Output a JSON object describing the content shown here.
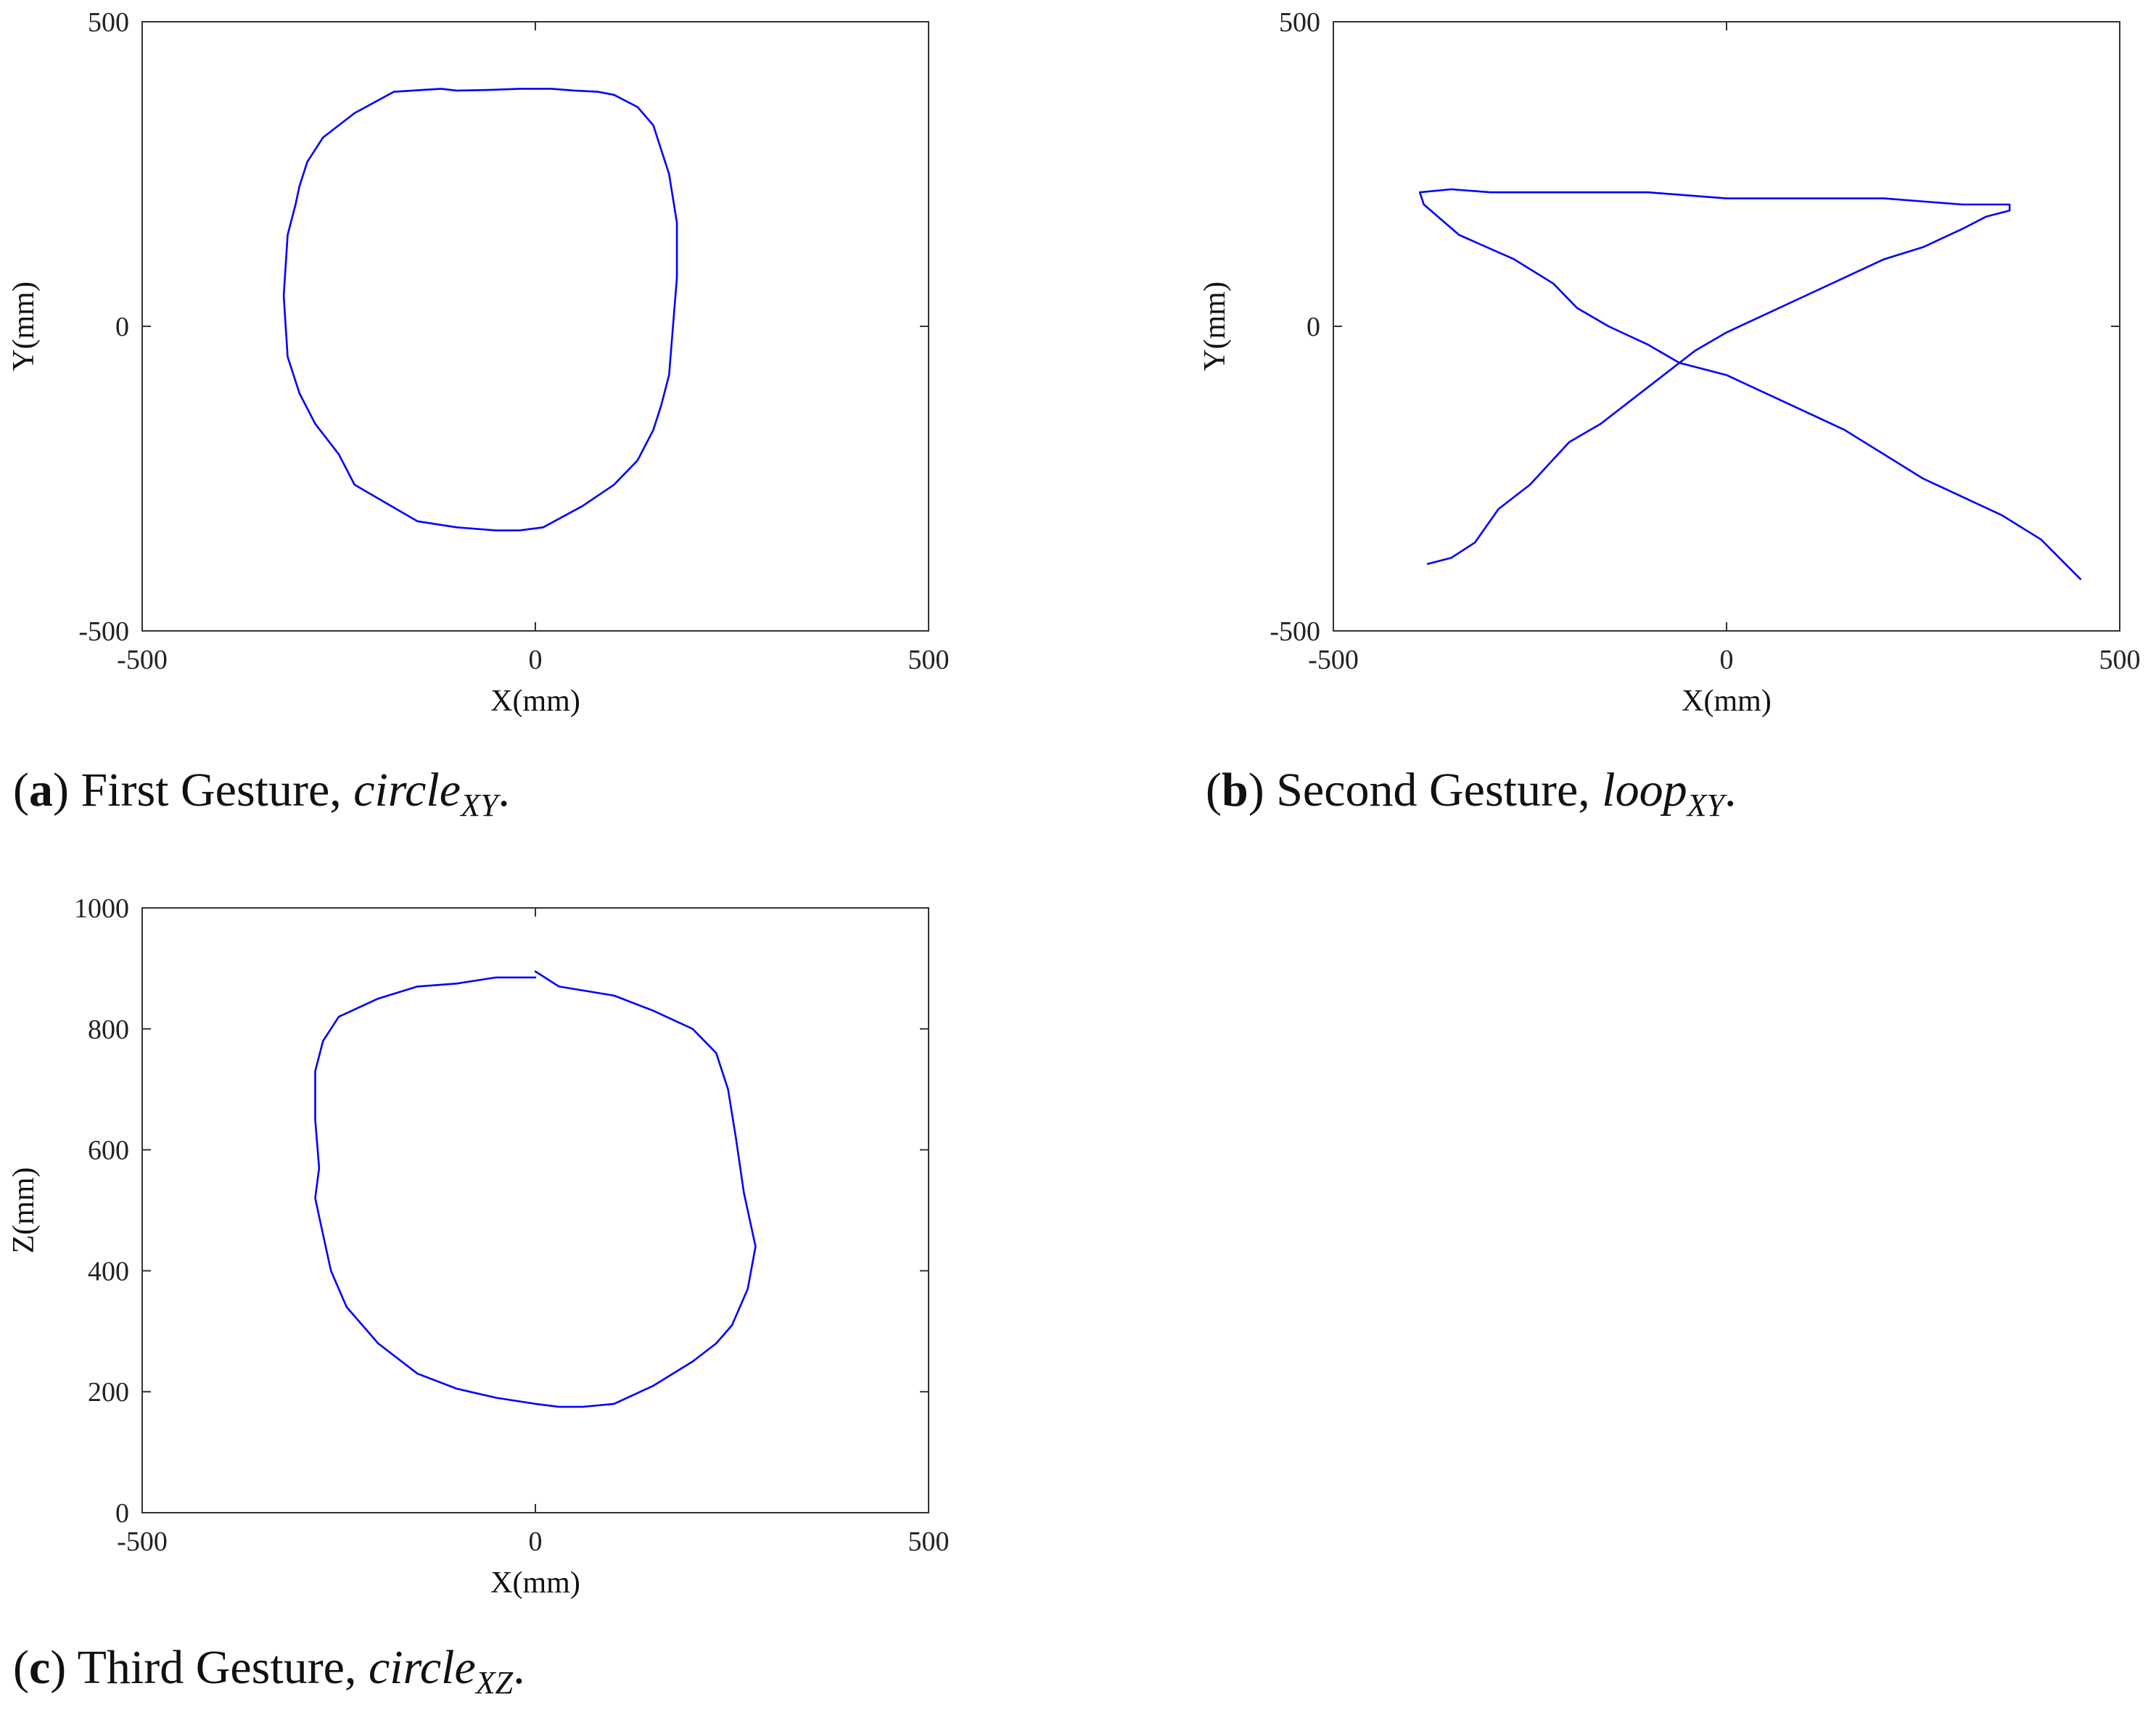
{
  "chart_data": [
    {
      "type": "line",
      "panel": "a",
      "caption": {
        "letter": "a",
        "text": "First Gesture,",
        "symbol": "circle",
        "subscript": "XY"
      },
      "xlabel": "X(mm)",
      "ylabel": "Y(mm)",
      "xlim": [
        -500,
        500
      ],
      "ylim": [
        -500,
        500
      ],
      "xticks": [
        "-500",
        "0",
        "500"
      ],
      "yticks": [
        "-500",
        "0",
        "500"
      ],
      "line_color": "#0000ff",
      "series": [
        {
          "x": [
            -120,
            -180,
            -230,
            -270,
            -290,
            -300,
            -305,
            -315,
            -320,
            -315,
            -300,
            -280,
            -250,
            -230,
            -190,
            -150,
            -100,
            -50,
            -20,
            10,
            60,
            100,
            130,
            150,
            160,
            170,
            175,
            180,
            180,
            175,
            170,
            160,
            150,
            130,
            100,
            80,
            50,
            20,
            0,
            -20,
            -60,
            -100,
            -120
          ],
          "y": [
            390,
            385,
            350,
            310,
            270,
            230,
            200,
            150,
            50,
            -50,
            -110,
            -160,
            -210,
            -260,
            -290,
            -320,
            -330,
            -335,
            -335,
            -330,
            -295,
            -260,
            -220,
            -170,
            -130,
            -80,
            0,
            80,
            170,
            210,
            250,
            290,
            330,
            360,
            380,
            385,
            387,
            390,
            390,
            390,
            388,
            387,
            390
          ]
        }
      ]
    },
    {
      "type": "line",
      "panel": "b",
      "caption": {
        "letter": "b",
        "text": "Second Gesture,",
        "symbol": "loop",
        "subscript": "XY"
      },
      "xlabel": "X(mm)",
      "ylabel": "Y(mm)",
      "xlim": [
        -500,
        500
      ],
      "ylim": [
        -500,
        500
      ],
      "xticks": [
        "-500",
        "0",
        "500"
      ],
      "yticks": [
        "-500",
        "0",
        "500"
      ],
      "line_color": "#0000ff",
      "series": [
        {
          "x": [
            -380,
            -350,
            -320,
            -290,
            -250,
            -200,
            -160,
            -120,
            -80,
            -40,
            0,
            50,
            100,
            150,
            200,
            250,
            300,
            330,
            360,
            360,
            300,
            200,
            100,
            0,
            -100,
            -200,
            -300,
            -350,
            -390,
            -385,
            -340,
            -270,
            -220,
            -190,
            -150,
            -100,
            -60,
            0,
            50,
            100,
            150,
            200,
            250,
            300,
            350,
            400,
            450
          ],
          "y": [
            -390,
            -380,
            -355,
            -300,
            -260,
            -190,
            -160,
            -120,
            -80,
            -40,
            -10,
            20,
            50,
            80,
            110,
            130,
            160,
            180,
            190,
            200,
            200,
            210,
            210,
            210,
            220,
            220,
            220,
            225,
            220,
            200,
            150,
            110,
            70,
            30,
            0,
            -30,
            -60,
            -80,
            -110,
            -140,
            -170,
            -210,
            -250,
            -280,
            -310,
            -350,
            -415
          ]
        }
      ]
    },
    {
      "type": "line",
      "panel": "c",
      "caption": {
        "letter": "c",
        "text": "Third Gesture,",
        "symbol": "circle",
        "subscript": "XZ"
      },
      "xlabel": "X(mm)",
      "ylabel": "Z(mm)",
      "xlim": [
        -500,
        500
      ],
      "ylim": [
        0,
        1000
      ],
      "xticks": [
        "-500",
        "0",
        "500"
      ],
      "yticks": [
        "0",
        "200",
        "400",
        "600",
        "800",
        "1000"
      ],
      "line_color": "#0000ff",
      "series": [
        {
          "x": [
            0,
            30,
            100,
            150,
            200,
            230,
            245,
            255,
            265,
            280,
            270,
            250,
            230,
            200,
            150,
            100,
            60,
            30,
            0,
            -50,
            -100,
            -150,
            -200,
            -240,
            -260,
            -270,
            -280,
            -275,
            -280,
            -280,
            -270,
            -250,
            -200,
            -150,
            -100,
            -50,
            -20,
            0
          ],
          "y": [
            895,
            870,
            855,
            830,
            800,
            760,
            700,
            620,
            530,
            440,
            370,
            310,
            280,
            250,
            210,
            180,
            175,
            175,
            180,
            190,
            205,
            230,
            280,
            340,
            400,
            460,
            520,
            570,
            650,
            730,
            780,
            820,
            850,
            870,
            875,
            885,
            885,
            885
          ]
        }
      ]
    }
  ]
}
